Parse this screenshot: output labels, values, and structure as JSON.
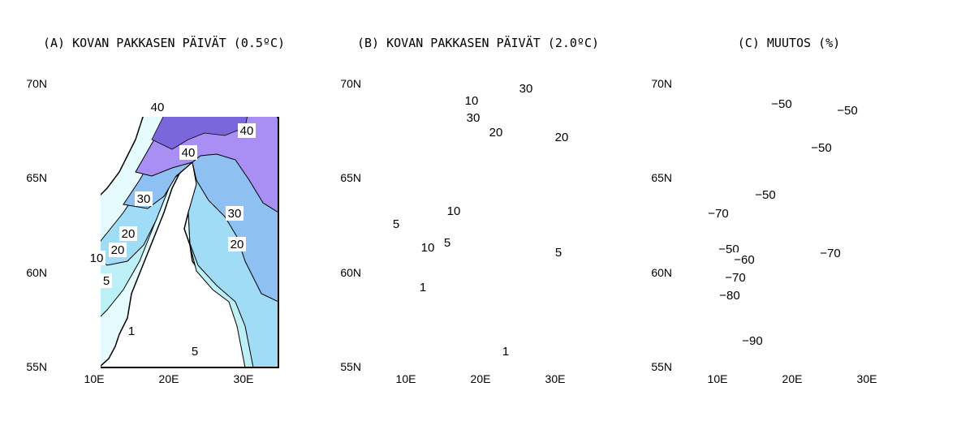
{
  "panels": [
    {
      "title": "(A) KOVAN PAKKASEN PÄIVÄT (0.5ºC)",
      "yticks": [
        "70N",
        "65N",
        "60N",
        "55N"
      ],
      "xticks": [
        "10E",
        "20E",
        "30E"
      ],
      "contour_labels": [
        "40",
        "40",
        "40",
        "30",
        "30",
        "20",
        "20",
        "20",
        "10",
        "5",
        "1",
        "5"
      ],
      "colors": [
        "#e6fbfd",
        "#bdeff7",
        "#a0dcf5",
        "#8ec0f2",
        "#a98ff3",
        "#7b67dc"
      ]
    },
    {
      "title": "(B) KOVAN PAKKASEN PÄIVÄT (2.0ºC)",
      "yticks": [
        "70N",
        "65N",
        "60N",
        "55N"
      ],
      "xticks": [
        "10E",
        "20E",
        "30E"
      ],
      "contour_labels": [
        "30",
        "10",
        "30",
        "20",
        "20",
        "10",
        "5",
        "10",
        "5",
        "5",
        "1",
        "1"
      ],
      "colors": [
        "#e6fbfd",
        "#bdeff7",
        "#a0dcf5",
        "#8ec0f2",
        "#a98ff3",
        "#7b67dc"
      ]
    },
    {
      "title": "(C) MUUTOS (%)",
      "yticks": [
        "70N",
        "65N",
        "60N",
        "55N"
      ],
      "xticks": [
        "10E",
        "20E",
        "30E"
      ],
      "contour_labels": [
        "−50",
        "−50",
        "−50",
        "−50",
        "−70",
        "−50",
        "−60",
        "−70",
        "−70",
        "−80",
        "−90"
      ],
      "colors": [
        "#e8d8d0",
        "#fff0a8",
        "#fde090",
        "#fbc048",
        "#f7a61f",
        "#f2928e"
      ]
    }
  ]
}
